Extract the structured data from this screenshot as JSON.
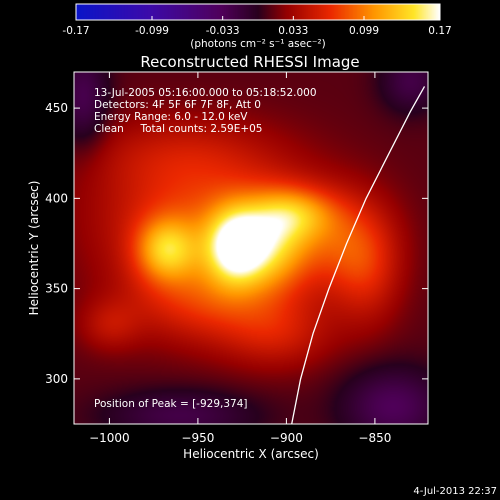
{
  "colorbar": {
    "ticks": [
      "-0.17",
      "-0.099",
      "-0.033",
      "0.033",
      "0.099",
      "0.17"
    ],
    "label": "(photons cm⁻² s⁻¹ asec⁻²)",
    "range": [
      -0.17,
      0.17
    ]
  },
  "chart_data": {
    "type": "heatmap",
    "title": "Reconstructed RHESSI Image",
    "xlabel": "Heliocentric X (arcsec)",
    "ylabel": "Heliocentric Y (arcsec)",
    "xlim": [
      -1020,
      -820
    ],
    "ylim": [
      275,
      470
    ],
    "xticks": [
      -1000,
      -950,
      -900,
      -850
    ],
    "xtick_labels": [
      "−1000",
      "−950",
      "−900",
      "−850"
    ],
    "yticks": [
      300,
      350,
      400,
      450
    ],
    "ytick_labels": [
      "300",
      "350",
      "400",
      "450"
    ],
    "peak": {
      "x": -929,
      "y": 374,
      "value": 0.17
    },
    "sources": [
      {
        "x": -929,
        "y": 374,
        "sx": 12,
        "sy": 15,
        "amp": 0.12
      },
      {
        "x": -968,
        "y": 372,
        "sx": 12,
        "sy": 12,
        "amp": 0.08
      },
      {
        "x": -908,
        "y": 375,
        "sx": 14,
        "sy": 18,
        "amp": 0.07
      },
      {
        "x": -895,
        "y": 392,
        "sx": 16,
        "sy": 10,
        "amp": 0.055
      },
      {
        "x": -948,
        "y": 388,
        "sx": 40,
        "sy": 24,
        "amp": 0.06
      },
      {
        "x": -945,
        "y": 345,
        "sx": 32,
        "sy": 18,
        "amp": 0.055
      },
      {
        "x": -875,
        "y": 378,
        "sx": 22,
        "sy": 20,
        "amp": 0.05
      },
      {
        "x": -855,
        "y": 360,
        "sx": 14,
        "sy": 22,
        "amp": 0.04
      },
      {
        "x": -905,
        "y": 325,
        "sx": 22,
        "sy": 14,
        "amp": 0.035
      },
      {
        "x": -1000,
        "y": 330,
        "sx": 12,
        "sy": 10,
        "amp": 0.028
      },
      {
        "x": -960,
        "y": 425,
        "sx": 40,
        "sy": 16,
        "amp": 0.03
      },
      {
        "x": -1015,
        "y": 455,
        "sx": 10,
        "sy": 20,
        "amp": -0.04
      },
      {
        "x": -830,
        "y": 465,
        "sx": 12,
        "sy": 12,
        "amp": -0.035
      },
      {
        "x": -840,
        "y": 285,
        "sx": 20,
        "sy": 15,
        "amp": -0.045
      },
      {
        "x": -960,
        "y": 280,
        "sx": 30,
        "sy": 10,
        "amp": -0.035
      }
    ],
    "limb_curve": [
      {
        "x": -897,
        "y": 275
      },
      {
        "x": -892,
        "y": 300
      },
      {
        "x": -885,
        "y": 325
      },
      {
        "x": -876,
        "y": 350
      },
      {
        "x": -866,
        "y": 375
      },
      {
        "x": -855,
        "y": 400
      },
      {
        "x": -842,
        "y": 425
      },
      {
        "x": -830,
        "y": 448
      },
      {
        "x": -822,
        "y": 462
      }
    ],
    "info_lines": [
      "13-Jul-2005 05:16:00.000 to 05:18:52.000",
      "Detectors: 4F 5F 6F 7F 8F, Att 0",
      "Energy Range: 6.0 - 12.0 keV",
      "Clean     Total counts: 2.59E+05"
    ],
    "peak_label": "Position of Peak = [-929,374]"
  },
  "timestamp": "4-Jul-2013 22:37"
}
